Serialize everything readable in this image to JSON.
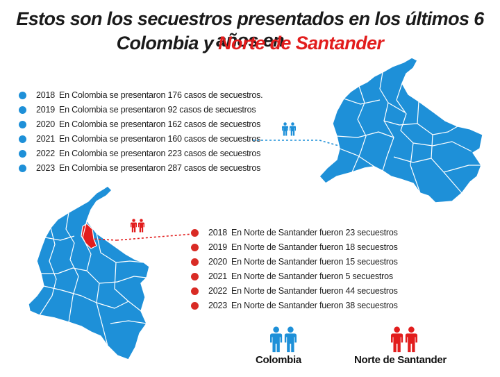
{
  "title": {
    "line1": "Estos son los secuestros presentados en los últimos 6 años en",
    "line2_prefix": "Colombia y ",
    "line2_highlight": "Norte de Santander"
  },
  "colors": {
    "colombia": "#1e90d8",
    "norte": "#e21d1d"
  },
  "colombia_list": [
    {
      "year": "2018",
      "text": "En Colombia se presentaron 176 casos de secuestros."
    },
    {
      "year": "2019",
      "text": "En Colombia se presentaron 92 casos de secuestros"
    },
    {
      "year": "2020",
      "text": "En Colombia se presentaron 162 casos de secuestros"
    },
    {
      "year": "2021",
      "text": "En Colombia se presentaron 160 casos de secuestros"
    },
    {
      "year": "2022",
      "text": "En Colombia se presentaron 223 casos de secuestros"
    },
    {
      "year": "2023",
      "text": "En Colombia se presentaron 287 casos de secuestros"
    }
  ],
  "norte_list": [
    {
      "year": "2018",
      "text": "En Norte de Santander fueron 23 secuestros"
    },
    {
      "year": "2019",
      "text": "En Norte de Santander fueron 18 secuestros"
    },
    {
      "year": "2020",
      "text": "En Norte de Santander fueron 15 secuestros"
    },
    {
      "year": "2021",
      "text": "En Norte de Santander fueron 5 secuestros"
    },
    {
      "year": "2022",
      "text": "En Norte de Santander fueron 44 secuestros"
    },
    {
      "year": "2023",
      "text": "En Norte de Santander fueron 38 secuestros"
    }
  ],
  "legend": {
    "colombia": "Colombia",
    "norte": "Norte de Santander"
  },
  "icons": {
    "colombia_people": "people-icon",
    "norte_people": "people-icon"
  }
}
